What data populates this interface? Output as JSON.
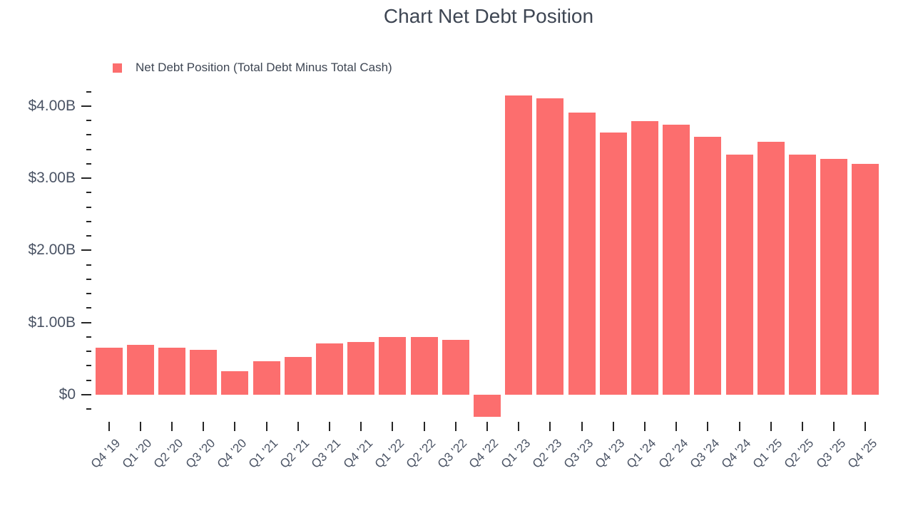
{
  "title": "Chart Net Debt Position",
  "legend": {
    "label": "Net Debt Position (Total Debt Minus Total Cash)"
  },
  "colors": {
    "bar": "#fc6e6e",
    "tick": "#262626",
    "title_text": "#3e4653",
    "axis_text": "#4a5364",
    "background": "#ffffff"
  },
  "chart_data": {
    "type": "bar",
    "title": "Chart Net Debt Position",
    "series_name": "Net Debt Position (Total Debt Minus Total Cash)",
    "unit": "USD billions",
    "categories": [
      "Q4 '19",
      "Q1 '20",
      "Q2 '20",
      "Q3 '20",
      "Q4 '20",
      "Q1 '21",
      "Q2 '21",
      "Q3 '21",
      "Q4 '21",
      "Q1 '22",
      "Q2 '22",
      "Q3 '22",
      "Q4 '22",
      "Q1 '23",
      "Q2 '23",
      "Q3 '23",
      "Q4 '23",
      "Q1 '24",
      "Q2 '24",
      "Q3 '24",
      "Q4 '24",
      "Q1 '25",
      "Q2 '25",
      "Q3 '25",
      "Q4 '25"
    ],
    "values": [
      0.65,
      0.69,
      0.65,
      0.62,
      0.33,
      0.46,
      0.52,
      0.71,
      0.73,
      0.8,
      0.8,
      0.76,
      -0.31,
      4.15,
      4.11,
      3.91,
      3.63,
      3.79,
      3.74,
      3.57,
      3.33,
      3.5,
      3.33,
      3.27,
      3.2
    ],
    "xlabel": "",
    "ylabel": "",
    "y_axis": {
      "tick_values": [
        0,
        1,
        2,
        3,
        4
      ],
      "tick_labels": [
        "$0",
        "$1.00B",
        "$2.00B",
        "$3.00B",
        "$4.00B"
      ],
      "minor_tick_step": 0.2,
      "range": [
        -0.2,
        4.2
      ]
    },
    "legend_position": "top-left",
    "grid": false,
    "bar_orientation": "vertical"
  }
}
